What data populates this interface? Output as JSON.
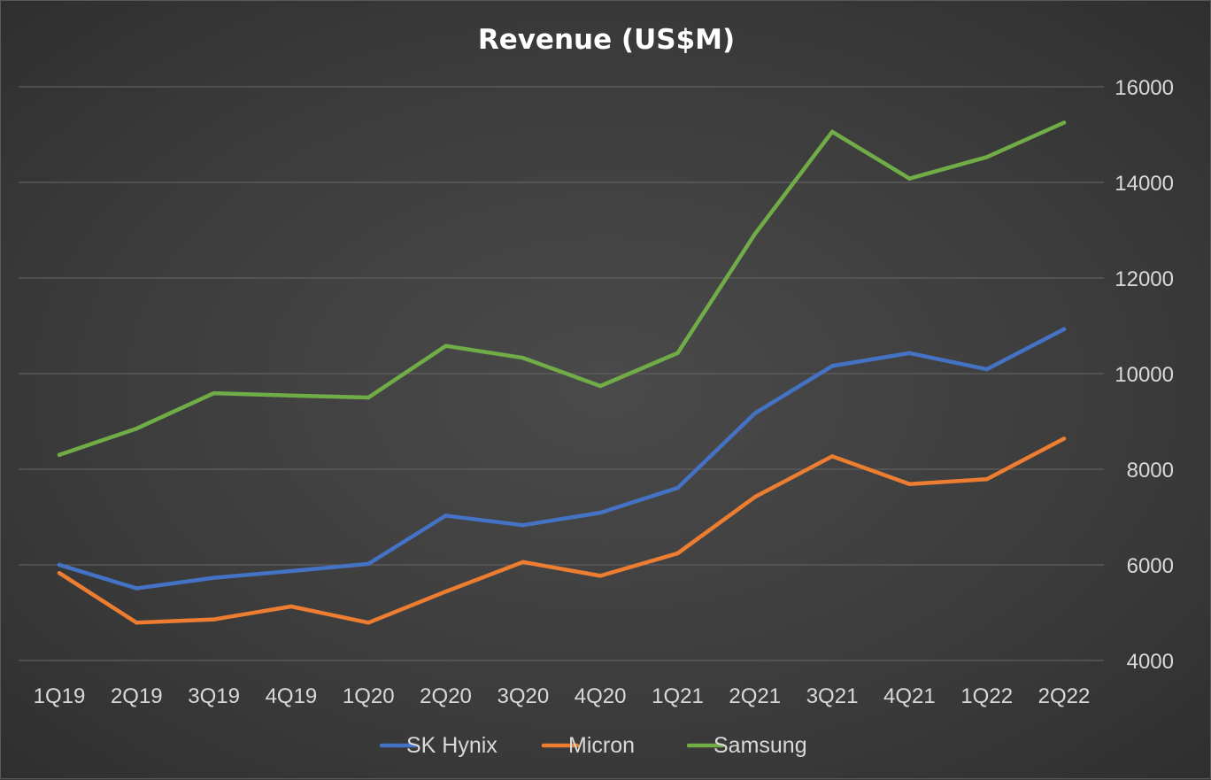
{
  "chart_data": {
    "type": "line",
    "title": "Revenue (US$M)",
    "xlabel": "",
    "ylabel": "",
    "categories": [
      "1Q19",
      "2Q19",
      "3Q19",
      "4Q19",
      "1Q20",
      "2Q20",
      "3Q20",
      "4Q20",
      "1Q21",
      "2Q21",
      "3Q21",
      "4Q21",
      "1Q22",
      "2Q22"
    ],
    "ylim": [
      4000,
      16000
    ],
    "yticks": [
      "4000",
      "6000",
      "8000",
      "10000",
      "12000",
      "14000",
      "16000"
    ],
    "y_axis_position": "right",
    "grid": true,
    "legend_position": "bottom",
    "series": [
      {
        "name": "SK Hynix",
        "color": "#4472c4",
        "values": [
          6000,
          5510,
          5730,
          5870,
          6020,
          7030,
          6830,
          7090,
          7610,
          9170,
          10160,
          10430,
          10090,
          10930
        ]
      },
      {
        "name": "Micron",
        "color": "#ed7d31",
        "values": [
          5830,
          4790,
          4860,
          5130,
          4790,
          5440,
          6060,
          5770,
          6240,
          7420,
          8270,
          7690,
          7790,
          8640
        ]
      },
      {
        "name": "Samsung",
        "color": "#70ad47",
        "values": [
          8300,
          8850,
          9590,
          9540,
          9500,
          10580,
          10330,
          9740,
          10430,
          12920,
          15060,
          14080,
          14530,
          15250
        ]
      }
    ]
  }
}
